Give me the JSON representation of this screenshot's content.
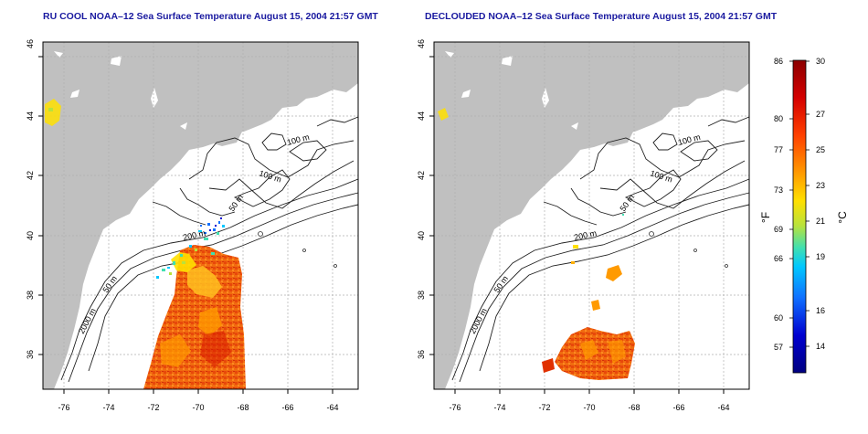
{
  "left_panel": {
    "title": "RU COOL NOAA–12 Sea Surface Temperature August 15, 2004 21:57 GMT",
    "contours": [
      "100 m",
      "100 m",
      "50 m",
      "200 m",
      "50 m",
      "2000 m"
    ]
  },
  "right_panel": {
    "title": "DECLOUDED NOAA–12 Sea Surface Temperature August 15, 2004 21:57 GMT",
    "contours": [
      "100 m",
      "100 m",
      "50 m",
      "200 m",
      "50 m",
      "2000 m"
    ]
  },
  "axes": {
    "x_ticks": [
      "-76",
      "-74",
      "-72",
      "-70",
      "-68",
      "-66",
      "-64"
    ],
    "y_ticks": [
      "36",
      "38",
      "40",
      "42",
      "44",
      "46"
    ]
  },
  "colorbar": {
    "fahrenheit_label": "°F",
    "celsius_label": "°C",
    "fahrenheit_ticks": [
      "86",
      "80",
      "77",
      "73",
      "69",
      "66",
      "60",
      "57"
    ],
    "celsius_ticks": [
      "30",
      "27",
      "25",
      "23",
      "21",
      "19",
      "16",
      "14"
    ],
    "colors": [
      "#8b0000",
      "#d40000",
      "#ff4000",
      "#ff9a00",
      "#ffe000",
      "#b8e23c",
      "#40e0b0",
      "#00c8ff",
      "#1070ff",
      "#0000d0",
      "#000080"
    ]
  }
}
